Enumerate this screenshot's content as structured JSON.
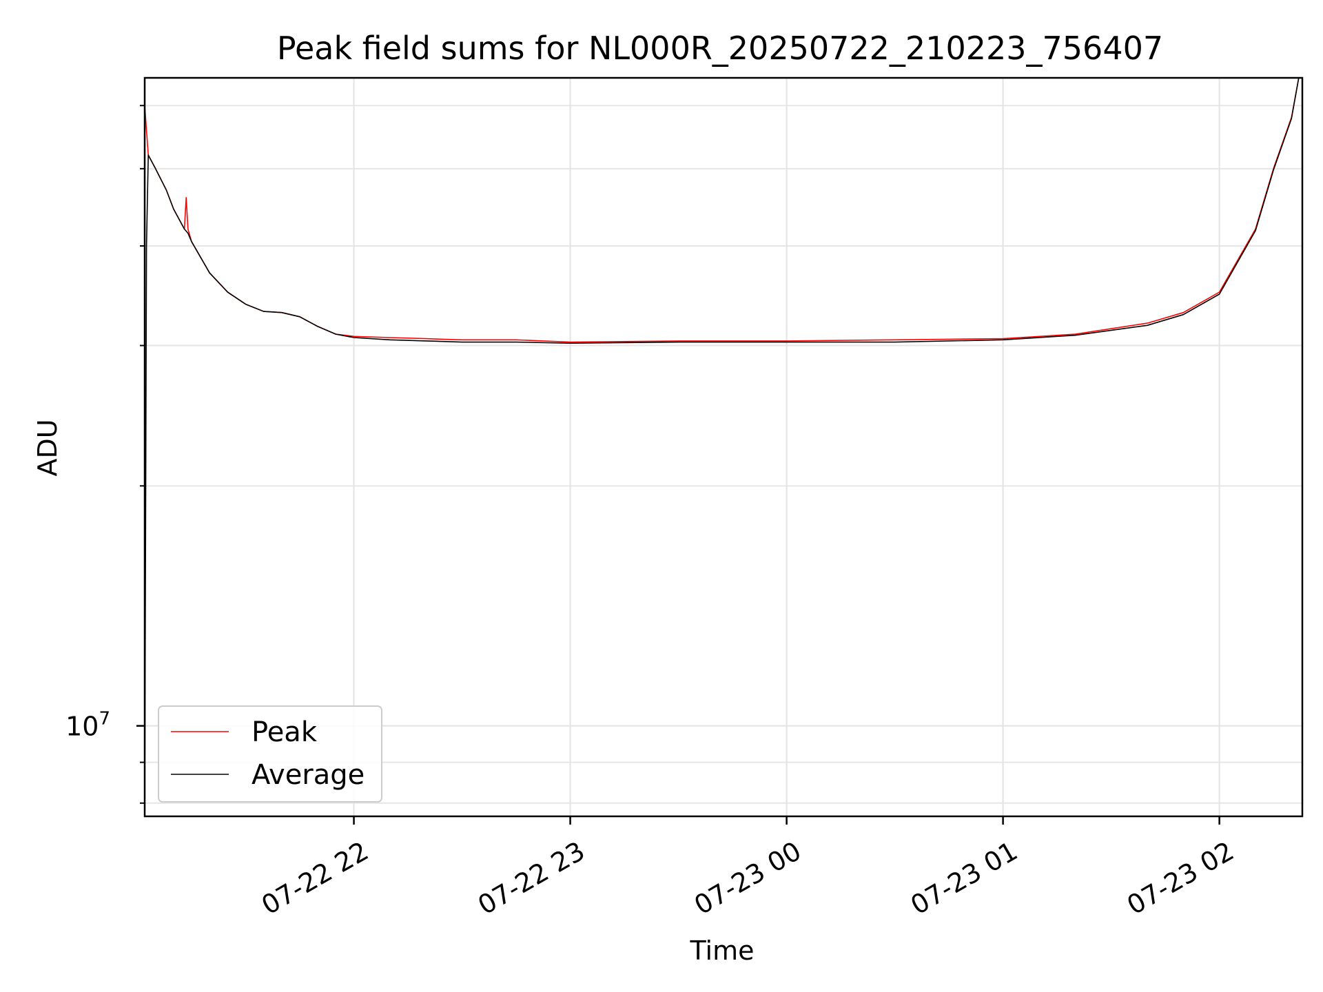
{
  "chart_data": {
    "type": "line",
    "title": "Peak field sums for NL000R_20250722_210223_756407",
    "xlabel": "Time",
    "ylabel": "ADU",
    "x_ticks": [
      "07-22 22",
      "07-22 23",
      "07-23 00",
      "07-23 01",
      "07-23 02"
    ],
    "y_ticks": [
      "10^7"
    ],
    "y_scale": "log",
    "y_tick_mantissa": "10",
    "y_tick_exponent": "7",
    "xlim": [
      "2025-07-22 21:02",
      "2025-07-23 02:23"
    ],
    "ylim": [
      7700000,
      65000000
    ],
    "grid": true,
    "legend": "lower-left",
    "series": [
      {
        "name": "Peak",
        "color": "#ff0000",
        "x": [
          "2025-07-22 21:02",
          "2025-07-22 21:03",
          "2025-07-22 21:05",
          "2025-07-22 21:08",
          "2025-07-22 21:10",
          "2025-07-22 21:13",
          "2025-07-22 21:13:30",
          "2025-07-22 21:14",
          "2025-07-22 21:15",
          "2025-07-22 21:20",
          "2025-07-22 21:25",
          "2025-07-22 21:30",
          "2025-07-22 21:35",
          "2025-07-22 21:40",
          "2025-07-22 21:45",
          "2025-07-22 21:50",
          "2025-07-22 21:55",
          "2025-07-22 22:00",
          "2025-07-22 22:10",
          "2025-07-22 22:20",
          "2025-07-22 22:30",
          "2025-07-22 22:45",
          "2025-07-22 23:00",
          "2025-07-22 23:30",
          "2025-07-23 00:00",
          "2025-07-23 00:30",
          "2025-07-23 01:00",
          "2025-07-23 01:20",
          "2025-07-23 01:40",
          "2025-07-23 01:50",
          "2025-07-23 02:00",
          "2025-07-23 02:10",
          "2025-07-23 02:15",
          "2025-07-23 02:20",
          "2025-07-23 02:22"
        ],
        "values": [
          60000000,
          52000000,
          50000000,
          47000000,
          44500000,
          42000000,
          46000000,
          42000000,
          40500000,
          37000000,
          35000000,
          33800000,
          33100000,
          33000000,
          32600000,
          31700000,
          31000000,
          30800000,
          30700000,
          30600000,
          30500000,
          30500000,
          30300000,
          30400000,
          30400000,
          30500000,
          30600000,
          31000000,
          32000000,
          33000000,
          35000000,
          42000000,
          50000000,
          58000000,
          65000000
        ]
      },
      {
        "name": "Average",
        "color": "#000000",
        "x": [
          "2025-07-22 21:02",
          "2025-07-22 21:02:30",
          "2025-07-22 21:03",
          "2025-07-22 21:05",
          "2025-07-22 21:08",
          "2025-07-22 21:10",
          "2025-07-22 21:13",
          "2025-07-22 21:14",
          "2025-07-22 21:15",
          "2025-07-22 21:20",
          "2025-07-22 21:25",
          "2025-07-22 21:30",
          "2025-07-22 21:35",
          "2025-07-22 21:40",
          "2025-07-22 21:45",
          "2025-07-22 21:50",
          "2025-07-22 21:55",
          "2025-07-22 22:00",
          "2025-07-22 22:10",
          "2025-07-22 22:20",
          "2025-07-22 22:30",
          "2025-07-22 22:45",
          "2025-07-22 23:00",
          "2025-07-22 23:30",
          "2025-07-23 00:00",
          "2025-07-23 00:30",
          "2025-07-23 01:00",
          "2025-07-23 01:20",
          "2025-07-23 01:40",
          "2025-07-23 01:50",
          "2025-07-23 02:00",
          "2025-07-23 02:10",
          "2025-07-23 02:15",
          "2025-07-23 02:20",
          "2025-07-23 02:22"
        ],
        "values": [
          7700000,
          40000000,
          52000000,
          50000000,
          47000000,
          44500000,
          42000000,
          41500000,
          40500000,
          37000000,
          35000000,
          33800000,
          33100000,
          33000000,
          32600000,
          31700000,
          31000000,
          30700000,
          30500000,
          30400000,
          30300000,
          30300000,
          30200000,
          30300000,
          30300000,
          30300000,
          30500000,
          30900000,
          31800000,
          32800000,
          34800000,
          41800000,
          49800000,
          57800000,
          65000000
        ]
      }
    ]
  }
}
